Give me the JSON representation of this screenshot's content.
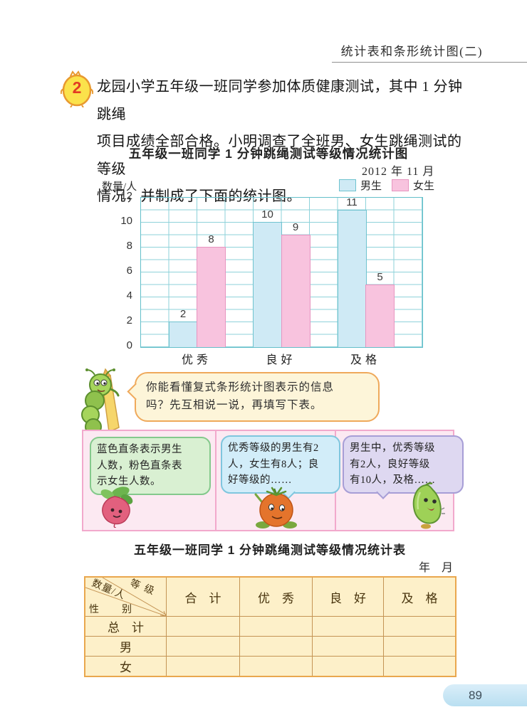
{
  "header": {
    "title": "统计表和条形统计图(二)"
  },
  "problem": {
    "badge": "2",
    "text_lines": [
      "龙园小学五年级一班同学参加体质健康测试，其中 1 分钟跳绳",
      "项目成绩全部合格。小明调查了全班男、女生跳绳测试的等级",
      "情况，并制成了下面的统计图。"
    ]
  },
  "chart_data": {
    "type": "bar",
    "title": "五年级一班同学 1 分钟跳绳测试等级情况统计图",
    "date": "2012 年 11 月",
    "ylabel": "数量/人",
    "categories": [
      "优秀",
      "良好",
      "及格"
    ],
    "series": [
      {
        "name": "男生",
        "values": [
          2,
          10,
          11
        ],
        "color": "#cfeaf5",
        "border": "#6fc3cf"
      },
      {
        "name": "女生",
        "values": [
          8,
          9,
          5
        ],
        "color": "#f8c3de",
        "border": "#e795c0"
      }
    ],
    "ylim": [
      0,
      12
    ],
    "ytick_step": 2,
    "grid": true,
    "legend_position": "top-right",
    "grid_color": "#8ed2da"
  },
  "hint_bubble": {
    "lines": [
      "你能看懂复式条形统计图表示的信息",
      "吗？先互相说一说，再填写下表。"
    ]
  },
  "discussion": {
    "bubbles": [
      {
        "lines": [
          "蓝色直条表示男生",
          "人数，粉色直条表",
          "示女生人数。"
        ]
      },
      {
        "lines": [
          "优秀等级的男生有2",
          "人，女生有8人；良",
          "好等级的……"
        ]
      },
      {
        "lines": [
          "男生中，优秀等级",
          "有2人，良好等级",
          "有10人，及格……"
        ]
      }
    ],
    "characters": [
      "radish",
      "tomato",
      "gourd"
    ]
  },
  "table": {
    "title": "五年级一班同学 1 分钟跳绳测试等级情况统计表",
    "date_blank": "年　月",
    "corner": {
      "top_right": "等级",
      "middle": "数量/人",
      "bottom_left": "性　别"
    },
    "columns": [
      "合　计",
      "优　秀",
      "良　好",
      "及　格"
    ],
    "rows": [
      "总　计",
      "男",
      "女"
    ]
  },
  "page_number": "89"
}
